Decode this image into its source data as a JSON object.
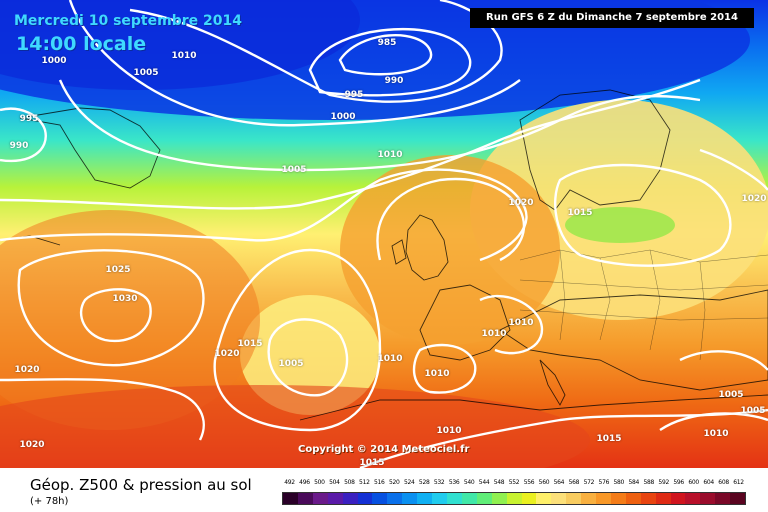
{
  "header": {
    "date_label": "Mercredi 10 septembre 2014",
    "time_label": "14:00 locale",
    "run_label": "Run GFS 6 Z du Dimanche 7 septembre 2014"
  },
  "copyright": "Copyright © 2014 Meteociel.fr",
  "legend": {
    "title": "Géop. Z500 & pression au sol",
    "forecast_hour": "(+ 78h)",
    "scale_values": [
      "492",
      "496",
      "500",
      "504",
      "508",
      "512",
      "516",
      "520",
      "524",
      "528",
      "532",
      "536",
      "540",
      "544",
      "548",
      "552",
      "556",
      "560",
      "564",
      "568",
      "572",
      "576",
      "580",
      "584",
      "588",
      "592",
      "596",
      "600",
      "604",
      "608",
      "612"
    ],
    "scale_colors": [
      "#2a0028",
      "#4a0a5a",
      "#6a1a8a",
      "#5a1aa8",
      "#3a20c0",
      "#1430d4",
      "#0650e0",
      "#0a70ea",
      "#0a90f0",
      "#10b0f2",
      "#20ccee",
      "#30e0d0",
      "#40e8a8",
      "#60ee78",
      "#90f050",
      "#c8f230",
      "#eaf020",
      "#fff06a",
      "#fce07a",
      "#f8cc60",
      "#f8b040",
      "#f89828",
      "#f47c18",
      "#ee6010",
      "#e84410",
      "#de2a14",
      "#d0141e",
      "#b8102a",
      "#9a0c2c",
      "#7a0828",
      "#5a0420"
    ]
  },
  "isobars": [
    {
      "value": "1000",
      "xy": [
        54,
        61
      ]
    },
    {
      "value": "1005",
      "xy": [
        146,
        73
      ]
    },
    {
      "value": "1010",
      "xy": [
        184,
        56
      ]
    },
    {
      "value": "985",
      "xy": [
        387,
        43
      ]
    },
    {
      "value": "990",
      "xy": [
        394,
        81
      ]
    },
    {
      "value": "995",
      "xy": [
        354,
        95
      ]
    },
    {
      "value": "1000",
      "xy": [
        343,
        117
      ]
    },
    {
      "value": "995",
      "xy": [
        29,
        119
      ]
    },
    {
      "value": "990",
      "xy": [
        19,
        146
      ]
    },
    {
      "value": "1005",
      "xy": [
        294,
        170
      ]
    },
    {
      "value": "1010",
      "xy": [
        390,
        155
      ]
    },
    {
      "value": "1020",
      "xy": [
        521,
        203
      ]
    },
    {
      "value": "1015",
      "xy": [
        580,
        213
      ]
    },
    {
      "value": "1020",
      "xy": [
        754,
        199
      ]
    },
    {
      "value": "1025",
      "xy": [
        118,
        270
      ]
    },
    {
      "value": "1030",
      "xy": [
        125,
        299
      ]
    },
    {
      "value": "1010",
      "xy": [
        494,
        334
      ]
    },
    {
      "value": "1010",
      "xy": [
        521,
        323
      ]
    },
    {
      "value": "1015",
      "xy": [
        250,
        344
      ]
    },
    {
      "value": "1020",
      "xy": [
        227,
        354
      ]
    },
    {
      "value": "1005",
      "xy": [
        291,
        364
      ]
    },
    {
      "value": "1010",
      "xy": [
        390,
        359
      ]
    },
    {
      "value": "1010",
      "xy": [
        437,
        374
      ]
    },
    {
      "value": "1020",
      "xy": [
        27,
        370
      ]
    },
    {
      "value": "1005",
      "xy": [
        731,
        395
      ]
    },
    {
      "value": "1005",
      "xy": [
        753,
        411
      ]
    },
    {
      "value": "1010",
      "xy": [
        449,
        431
      ]
    },
    {
      "value": "1010",
      "xy": [
        716,
        434
      ]
    },
    {
      "value": "1015",
      "xy": [
        609,
        439
      ]
    },
    {
      "value": "1020",
      "xy": [
        32,
        445
      ]
    },
    {
      "value": "1015",
      "xy": [
        372,
        463
      ]
    }
  ]
}
